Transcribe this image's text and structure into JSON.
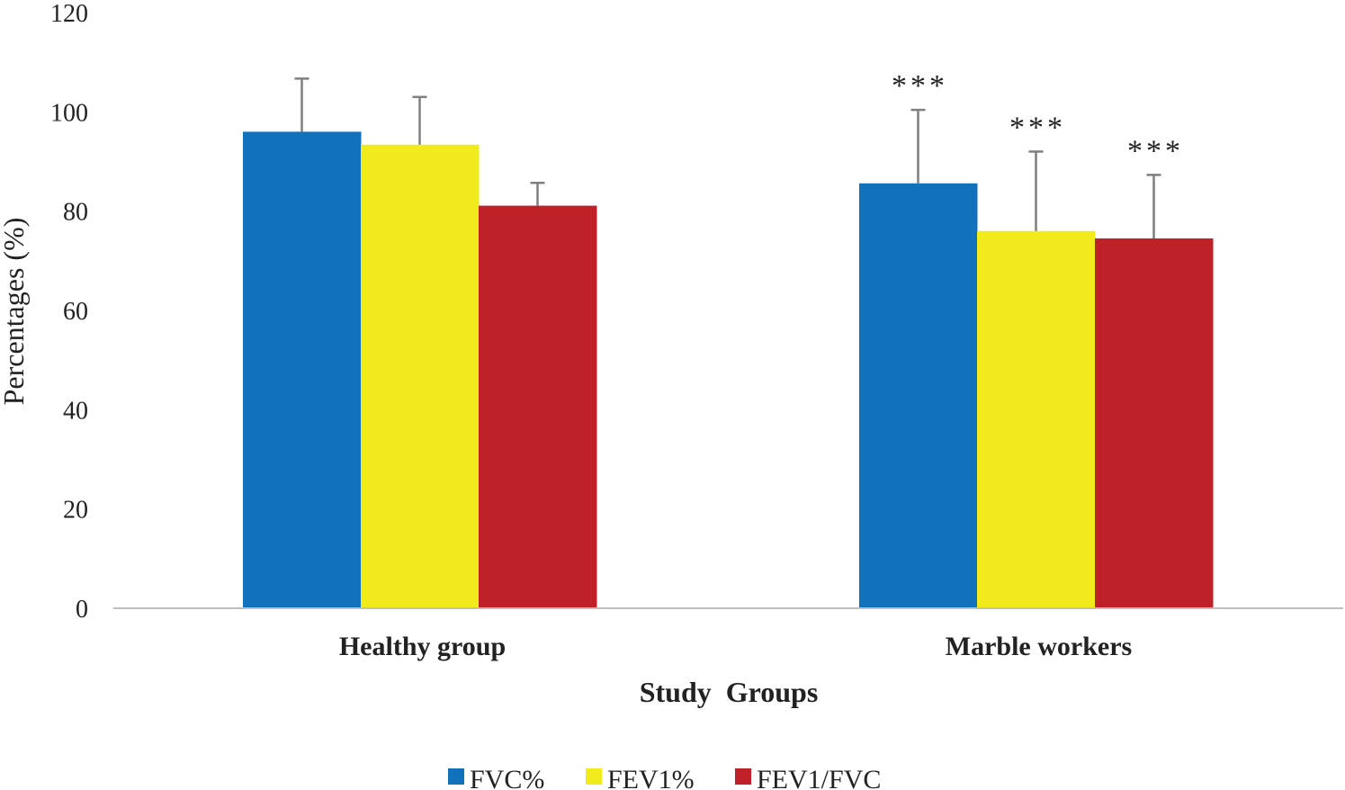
{
  "chart_data": {
    "type": "bar",
    "xlabel": "Study  Groups",
    "ylabel": "Percentages (%)",
    "ylim": [
      0,
      120
    ],
    "yticks": [
      0,
      20,
      40,
      60,
      80,
      100,
      120
    ],
    "grid": false,
    "legend_position": "bottom",
    "categories": [
      "Healthy group",
      "Marble workers"
    ],
    "series": [
      {
        "name": "FVC%",
        "color": "#1172bb",
        "values": [
          96,
          85.6
        ],
        "errors": [
          10.7,
          14.8
        ]
      },
      {
        "name": "FEV1%",
        "color": "#f2eb1c",
        "values": [
          93.4,
          76
        ],
        "errors": [
          9.6,
          16
        ]
      },
      {
        "name": "FEV1/FVC",
        "color": "#c02027",
        "values": [
          81.1,
          74.5
        ],
        "errors": [
          4.6,
          12.8
        ]
      }
    ],
    "annotations": [
      {
        "category": 1,
        "series": 0,
        "text": "***"
      },
      {
        "category": 1,
        "series": 1,
        "text": "***"
      },
      {
        "category": 1,
        "series": 2,
        "text": "***"
      }
    ]
  }
}
